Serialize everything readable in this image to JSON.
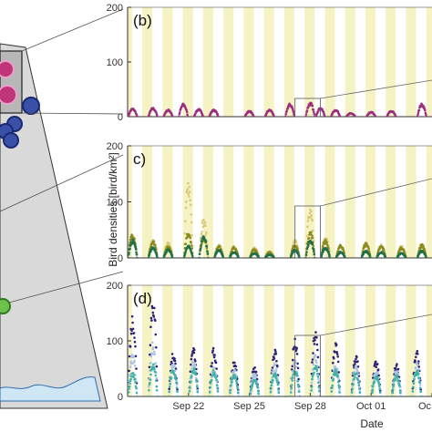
{
  "figure": {
    "ylabel": "Bird densities [bird/km²]",
    "xlabel": "Date",
    "night_band_color": "#f5f2c4",
    "map_land_color": "#d9d9d9",
    "map_water_color": "#cfe6f5",
    "map_coast_color": "#2a6fb0",
    "map_points": [
      {
        "color": "#c0357a",
        "ring": "#e8a0c8"
      },
      {
        "color": "#c0357a",
        "ring": "#e8a0c8"
      },
      {
        "color": "#3a4fa8",
        "ring": "#1a2a70"
      },
      {
        "color": "#3a4fa8",
        "ring": "#1a2a70"
      },
      {
        "color": "#3a4fa8",
        "ring": "#1a2a70"
      },
      {
        "color": "#3a4fa8",
        "ring": "#1a2a70"
      },
      {
        "color": "#6cc24a",
        "ring": "#2e7a1a"
      }
    ]
  },
  "chart_data": [
    {
      "type": "scatter",
      "panel_label": "(b)",
      "xlim": [
        "2017-09-19",
        "2017-10-04"
      ],
      "ylim": [
        0,
        200
      ],
      "yticks": [
        "0",
        "100",
        "200"
      ],
      "xticks": [],
      "series": [
        {
          "color": "#9c2f7f",
          "peaks": [
            [
              "09-19 06:00",
              14
            ],
            [
              "09-20 06:00",
              15
            ],
            [
              "09-21 00:00",
              12
            ],
            [
              "09-21 18:00",
              22
            ],
            [
              "09-22 12:00",
              13
            ],
            [
              "09-23 06:00",
              12
            ],
            [
              "09-25 00:00",
              10
            ],
            [
              "09-26 00:00",
              12
            ],
            [
              "09-27 00:00",
              22
            ],
            [
              "09-28 00:00",
              24
            ],
            [
              "09-28 12:00",
              15
            ],
            [
              "09-29 06:00",
              12
            ],
            [
              "09-30 00:00",
              6
            ],
            [
              "10-01 00:00",
              8
            ],
            [
              "10-02 00:00",
              10
            ],
            [
              "10-03 12:00",
              22
            ]
          ]
        }
      ]
    },
    {
      "type": "scatter",
      "panel_label": "c)",
      "xlim": [
        "2017-09-19",
        "2017-10-04"
      ],
      "ylim": [
        0,
        200
      ],
      "yticks": [
        "0",
        "100",
        "200"
      ],
      "xticks": [],
      "series": [
        {
          "color": "#d9c97a",
          "peaks": [
            [
              "09-19 06:00",
              38
            ],
            [
              "09-20 06:00",
              30
            ],
            [
              "09-21 00:00",
              28
            ],
            [
              "09-22 00:00",
              128
            ],
            [
              "09-22 18:00",
              65
            ],
            [
              "09-23 12:00",
              22
            ],
            [
              "09-24 06:00",
              20
            ],
            [
              "09-25 06:00",
              18
            ],
            [
              "09-26 00:00",
              12
            ],
            [
              "09-27 06:00",
              30
            ],
            [
              "09-28 00:00",
              82
            ],
            [
              "09-28 18:00",
              35
            ],
            [
              "09-29 12:00",
              22
            ],
            [
              "09-30 18:00",
              26
            ],
            [
              "10-01 12:00",
              22
            ],
            [
              "10-02 12:00",
              20
            ],
            [
              "10-03 12:00",
              25
            ]
          ]
        },
        {
          "color": "#8a8a1e",
          "peaks": [
            [
              "09-19 06:00",
              42
            ],
            [
              "09-20 06:00",
              28
            ],
            [
              "09-21 00:00",
              20
            ],
            [
              "09-22 00:00",
              45
            ],
            [
              "09-22 18:00",
              35
            ],
            [
              "09-23 12:00",
              20
            ],
            [
              "09-24 06:00",
              18
            ],
            [
              "09-25 06:00",
              15
            ],
            [
              "09-26 00:00",
              10
            ],
            [
              "09-27 06:00",
              22
            ],
            [
              "09-28 00:00",
              45
            ],
            [
              "09-28 18:00",
              30
            ],
            [
              "09-29 12:00",
              22
            ],
            [
              "09-30 18:00",
              25
            ],
            [
              "10-01 12:00",
              20
            ],
            [
              "10-02 12:00",
              18
            ],
            [
              "10-03 12:00",
              22
            ]
          ]
        },
        {
          "color": "#1f6f4a",
          "peaks": [
            [
              "09-19 06:00",
              30
            ],
            [
              "09-20 06:00",
              18
            ],
            [
              "09-21 00:00",
              14
            ],
            [
              "09-22 00:00",
              20
            ],
            [
              "09-22 18:00",
              38
            ],
            [
              "09-23 12:00",
              14
            ],
            [
              "09-24 06:00",
              10
            ],
            [
              "09-25 06:00",
              8
            ],
            [
              "09-26 00:00",
              6
            ],
            [
              "09-27 06:00",
              14
            ],
            [
              "09-28 00:00",
              30
            ],
            [
              "09-28 18:00",
              18
            ],
            [
              "09-29 12:00",
              10
            ],
            [
              "09-30 18:00",
              12
            ],
            [
              "10-01 12:00",
              10
            ],
            [
              "10-02 12:00",
              8
            ],
            [
              "10-03 12:00",
              12
            ]
          ]
        }
      ]
    },
    {
      "type": "scatter",
      "panel_label": "(d)",
      "xlim": [
        "2017-09-19",
        "2017-10-04"
      ],
      "ylim": [
        0,
        200
      ],
      "yticks": [
        "0",
        "100",
        "200"
      ],
      "xticks": [
        {
          "date": "2017-09-22",
          "label": "Sep 22"
        },
        {
          "date": "2017-09-25",
          "label": "Sep 25"
        },
        {
          "date": "2017-09-28",
          "label": "Sep 28"
        },
        {
          "date": "2017-10-01",
          "label": "Oct 01"
        },
        {
          "date": "2017-10-04",
          "label": "Oc"
        }
      ],
      "series": [
        {
          "color": "#2e2277",
          "peaks": [
            [
              "09-19 06:00",
              138
            ],
            [
              "09-20 06:00",
              168
            ],
            [
              "09-21 06:00",
              75
            ],
            [
              "09-22 06:00",
              82
            ],
            [
              "09-23 06:00",
              80
            ],
            [
              "09-24 06:00",
              60
            ],
            [
              "09-25 06:00",
              48
            ],
            [
              "09-26 06:00",
              80
            ],
            [
              "09-27 06:00",
              95
            ],
            [
              "09-28 06:00",
              110
            ],
            [
              "09-29 06:00",
              90
            ],
            [
              "09-30 06:00",
              70
            ],
            [
              "10-01 06:00",
              60
            ],
            [
              "10-02 06:00",
              55
            ],
            [
              "10-03 06:00",
              75
            ]
          ]
        },
        {
          "color": "#a9c3e3",
          "peaks": [
            [
              "09-19 06:00",
              70
            ],
            [
              "09-20 06:00",
              90
            ],
            [
              "09-21 06:00",
              55
            ],
            [
              "09-22 06:00",
              60
            ],
            [
              "09-23 06:00",
              50
            ],
            [
              "09-24 06:00",
              45
            ],
            [
              "09-25 06:00",
              40
            ],
            [
              "09-26 06:00",
              55
            ],
            [
              "09-27 06:00",
              60
            ],
            [
              "09-28 06:00",
              70
            ],
            [
              "09-29 06:00",
              55
            ],
            [
              "09-30 06:00",
              50
            ],
            [
              "10-01 06:00",
              45
            ],
            [
              "10-02 06:00",
              45
            ],
            [
              "10-03 06:00",
              55
            ]
          ]
        },
        {
          "color": "#3eb2a6",
          "peaks": [
            [
              "09-19 06:00",
              40
            ],
            [
              "09-20 06:00",
              55
            ],
            [
              "09-21 06:00",
              45
            ],
            [
              "09-22 06:00",
              48
            ],
            [
              "09-23 06:00",
              45
            ],
            [
              "09-24 06:00",
              38
            ],
            [
              "09-25 06:00",
              30
            ],
            [
              "09-26 06:00",
              40
            ],
            [
              "09-27 06:00",
              45
            ],
            [
              "09-28 06:00",
              55
            ],
            [
              "09-29 06:00",
              45
            ],
            [
              "09-30 06:00",
              40
            ],
            [
              "10-01 06:00",
              35
            ],
            [
              "10-02 06:00",
              35
            ],
            [
              "10-03 06:00",
              45
            ]
          ]
        }
      ]
    }
  ]
}
